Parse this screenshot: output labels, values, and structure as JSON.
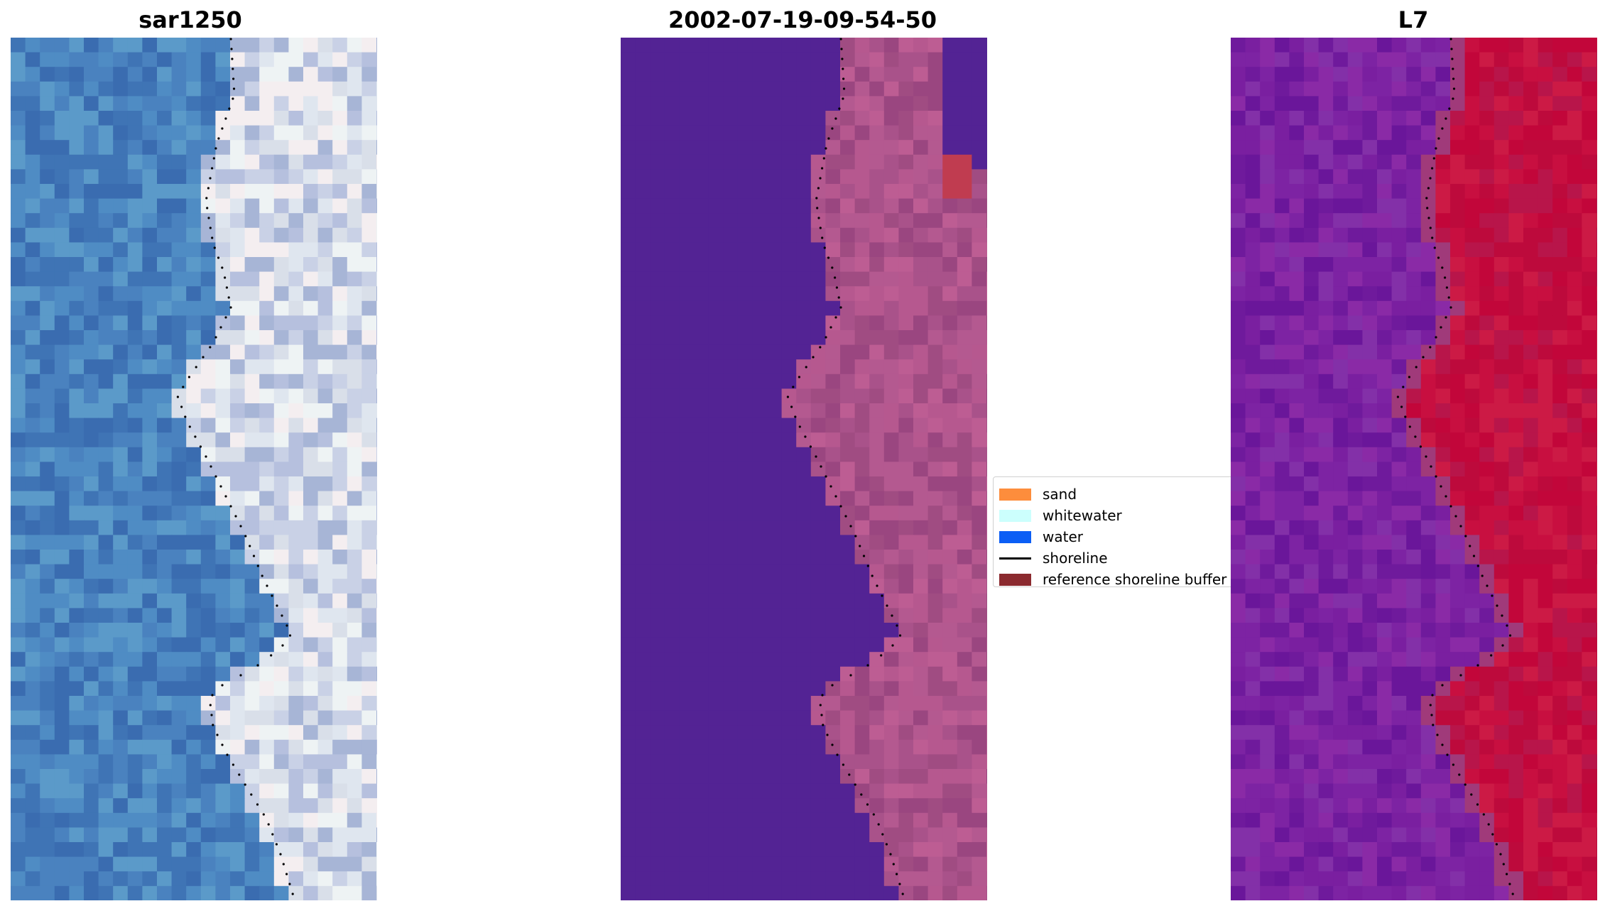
{
  "panels": [
    {
      "title": "sar1250",
      "palette": {
        "water": [
          "#3f74b5",
          "#4a82bf",
          "#3a6cb0",
          "#5b9ac9",
          "#4f8cc4"
        ],
        "land": [
          "#c9d1e6",
          "#dfe6ef",
          "#b6c0de",
          "#eef3f4",
          "#a7b5d6",
          "#d9dfe9",
          "#f4eef0"
        ]
      }
    },
    {
      "title": "2002-07-19-09-54-50",
      "palette": {
        "water": [
          "#532394"
        ],
        "land": [
          "#b6588f",
          "#a9528a",
          "#bd5d93",
          "#a04c82",
          "#b45990",
          "#9a4680"
        ],
        "patch": "#c03c50"
      }
    },
    {
      "title": "L7",
      "palette": {
        "water": [
          "#7a1fa0",
          "#6f1a9c",
          "#8a2aa6",
          "#7d23a3",
          "#6a169a",
          "#8330a8"
        ],
        "land": [
          "#c2063a",
          "#c80f40",
          "#b8154a",
          "#cc1a45",
          "#bd0a3c"
        ],
        "edge": "#a03a7a"
      }
    }
  ],
  "legend": {
    "entries": [
      {
        "label": "sand",
        "color": "#fd8d3c",
        "kind": "patch"
      },
      {
        "label": "whitewater",
        "color": "#ccfffd",
        "kind": "patch"
      },
      {
        "label": "water",
        "color": "#0b5ef5",
        "kind": "patch"
      },
      {
        "label": "shoreline",
        "color": "#000000",
        "kind": "line"
      },
      {
        "label": "reference shoreline buffer",
        "color": "#8b2a2f",
        "kind": "patch"
      }
    ]
  },
  "shoreline_color": "#000000"
}
